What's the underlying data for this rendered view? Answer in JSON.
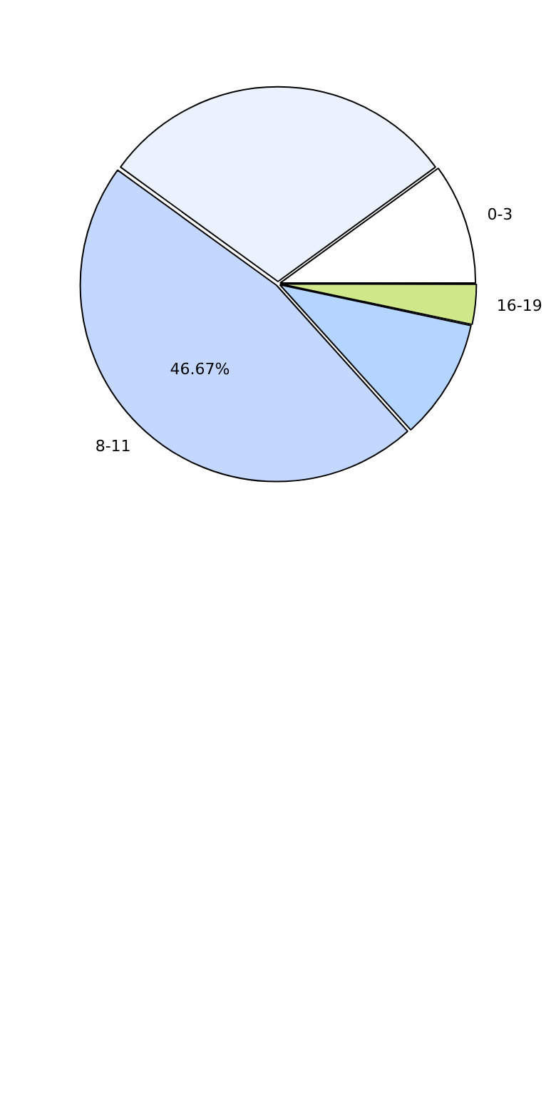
{
  "chart_data": {
    "type": "pie",
    "categories": [
      "0-3",
      null,
      "8-11",
      null,
      "16-19"
    ],
    "values": [
      10,
      30,
      46.67,
      10,
      3.33
    ],
    "colors": [
      "#ffffff",
      "#eaf1ff",
      "#c4d8ff",
      "#b3d5ff",
      "#cfe98a"
    ],
    "value_labels": [
      null,
      null,
      "46.67%",
      null,
      null
    ],
    "legend": false
  }
}
